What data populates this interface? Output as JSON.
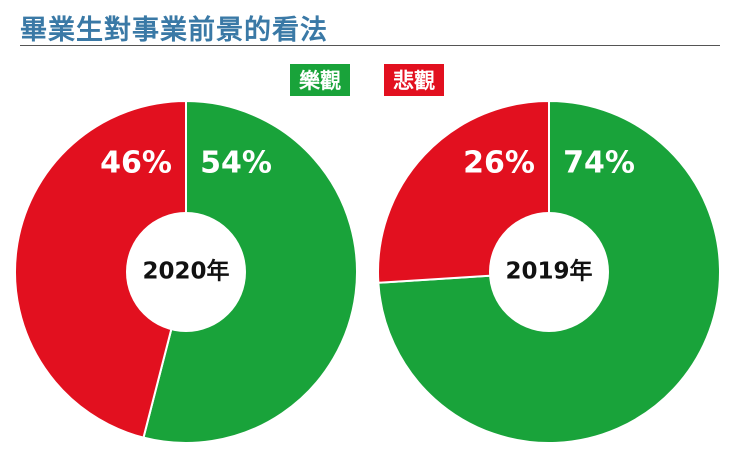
{
  "title": "畢業生對事業前景的看法",
  "colors": {
    "title": "#3a79a6",
    "positive": "#19a33a",
    "negative": "#e2101f"
  },
  "chart_data": [
    {
      "type": "pie",
      "variant": "donut",
      "center_label": "2020年",
      "slices": [
        {
          "name": "樂觀",
          "value": 54,
          "label": "54%",
          "color": "#19a33a"
        },
        {
          "name": "悲觀",
          "value": 46,
          "label": "46%",
          "color": "#e2101f"
        }
      ]
    },
    {
      "type": "pie",
      "variant": "donut",
      "center_label": "2019年",
      "slices": [
        {
          "name": "樂觀",
          "value": 74,
          "label": "74%",
          "color": "#19a33a"
        },
        {
          "name": "悲觀",
          "value": 26,
          "label": "26%",
          "color": "#e2101f"
        }
      ]
    }
  ],
  "legend": [
    {
      "label": "樂觀",
      "color": "#19a33a"
    },
    {
      "label": "悲觀",
      "color": "#e2101f"
    }
  ]
}
